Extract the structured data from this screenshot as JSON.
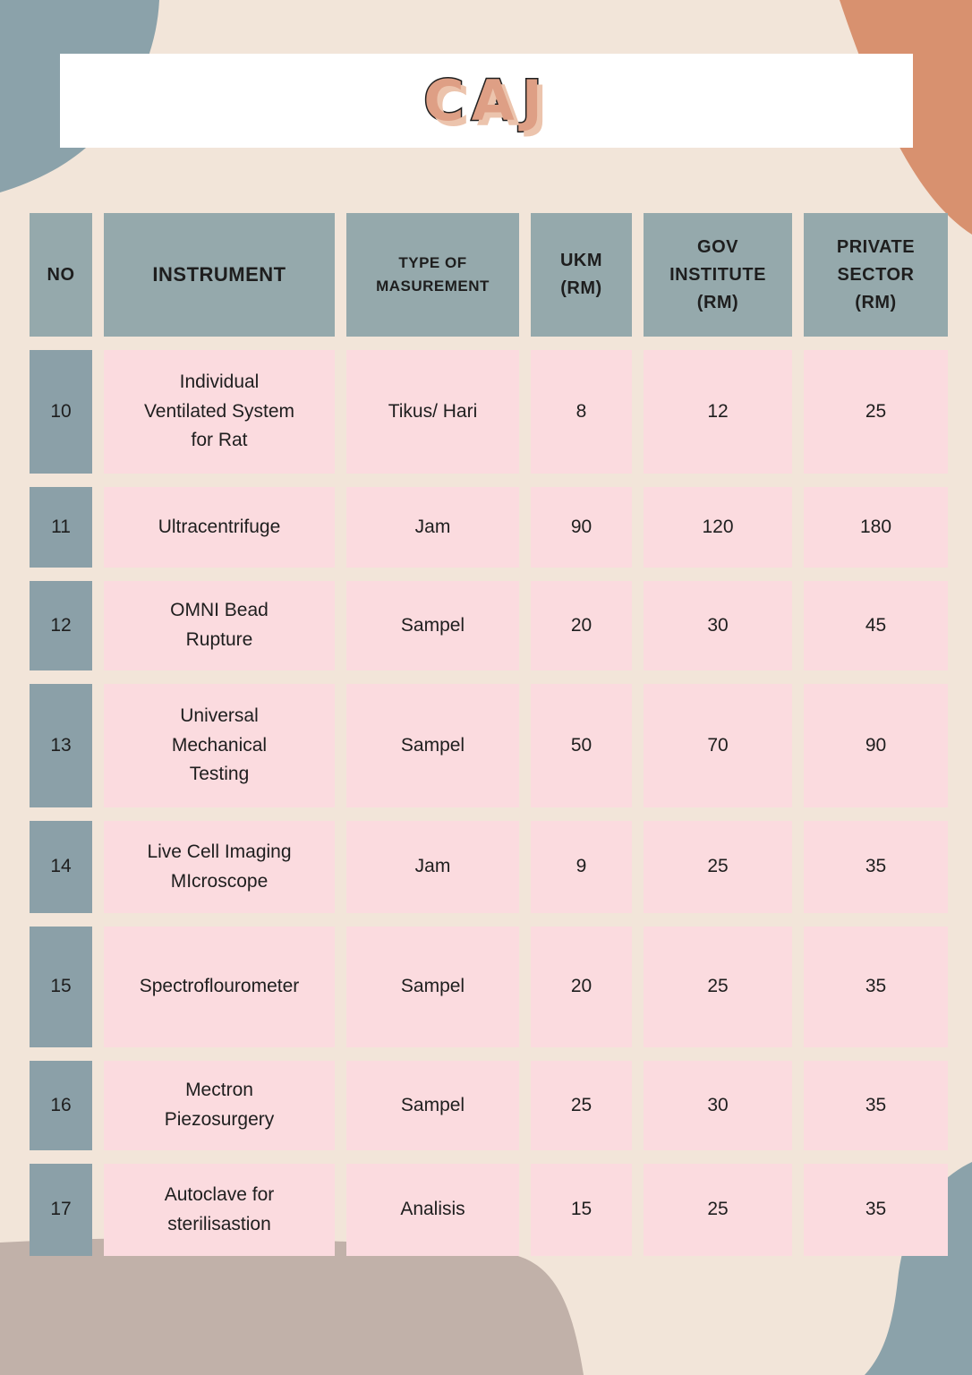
{
  "page": {
    "title": "CAJ"
  },
  "table": {
    "headers": [
      {
        "id": "no",
        "label": "NO"
      },
      {
        "id": "instrument",
        "label": "INSTRUMENT"
      },
      {
        "id": "type",
        "label": "TYPE OF\nMASUREMENT"
      },
      {
        "id": "ukm",
        "label": "UKM\n(RM)"
      },
      {
        "id": "gov",
        "label": "GOV\nINSTITUTE\n(RM)"
      },
      {
        "id": "private",
        "label": "PRIVATE\nSECTOR\n(RM)"
      }
    ],
    "rows": [
      {
        "no": "10",
        "instrument": "Individual\nVentilated System\nfor Rat",
        "type": "Tikus/ Hari",
        "ukm": "8",
        "gov": "12",
        "private": "25"
      },
      {
        "no": "11",
        "instrument": "Ultracentrifuge",
        "type": "Jam",
        "ukm": "90",
        "gov": "120",
        "private": "180"
      },
      {
        "no": "12",
        "instrument": "OMNI Bead\nRupture",
        "type": "Sampel",
        "ukm": "20",
        "gov": "30",
        "private": "45"
      },
      {
        "no": "13",
        "instrument": "Universal\nMechanical\nTesting",
        "type": "Sampel",
        "ukm": "50",
        "gov": "70",
        "private": "90"
      },
      {
        "no": "14",
        "instrument": "Live Cell Imaging\nMIcroscope",
        "type": "Jam",
        "ukm": "9",
        "gov": "25",
        "private": "35"
      },
      {
        "no": "15",
        "instrument": "Spectroflourometer",
        "type": "Sampel",
        "ukm": "20",
        "gov": "25",
        "private": "35"
      },
      {
        "no": "16",
        "instrument": "Mectron\nPiezosurgery",
        "type": "Sampel",
        "ukm": "25",
        "gov": "30",
        "private": "35"
      },
      {
        "no": "17",
        "instrument": "Autoclave for\nsterilisastion",
        "type": "Analisis",
        "ukm": "15",
        "gov": "25",
        "private": "35"
      }
    ]
  },
  "colors": {
    "background": "#f2e5d9",
    "banner": "#ffffff",
    "title_fill": "#de9f85",
    "title_outline": "#1f1f1f",
    "title_shadow": "#ecc4ad",
    "header_cell": "#95a9ac",
    "number_cell": "#8ba0a8",
    "data_cell": "#fbdbdf",
    "accent_salmon": "#d8916f",
    "accent_mauve": "#c1b1a9",
    "accent_bluegray": "#8ba2aa",
    "text": "#1e1e1e"
  }
}
